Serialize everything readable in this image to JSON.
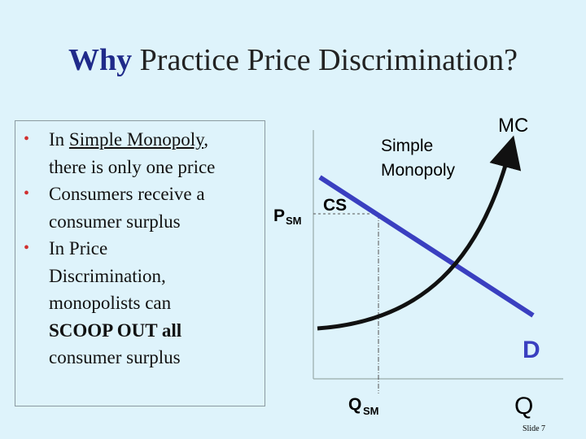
{
  "title": {
    "lead": "Why",
    "rest": "Practice Price Discrimination?"
  },
  "bullets": [
    {
      "lines": [
        [
          "In ",
          "Simple Monopoly",
          ","
        ],
        [
          "there is only one price"
        ]
      ]
    },
    {
      "lines": [
        [
          "Consumers receive a"
        ],
        [
          "consumer surplus"
        ]
      ]
    },
    {
      "lines": [
        [
          "In Price"
        ],
        [
          "Discrimination,"
        ],
        [
          "monopolists can"
        ],
        [
          "SCOOP OUT all"
        ],
        [
          "consumer surplus"
        ]
      ]
    }
  ],
  "diagram": {
    "mc_label": "MC",
    "monopoly_label": [
      "Simple",
      "Monopoly"
    ],
    "price_label": {
      "main": "P",
      "sub": "SM"
    },
    "cs_label": "CS",
    "demand_label": "D",
    "quantity_label": {
      "main": "Q",
      "sub": "SM"
    },
    "axis_label": "Q"
  },
  "footer": "Slide 7"
}
